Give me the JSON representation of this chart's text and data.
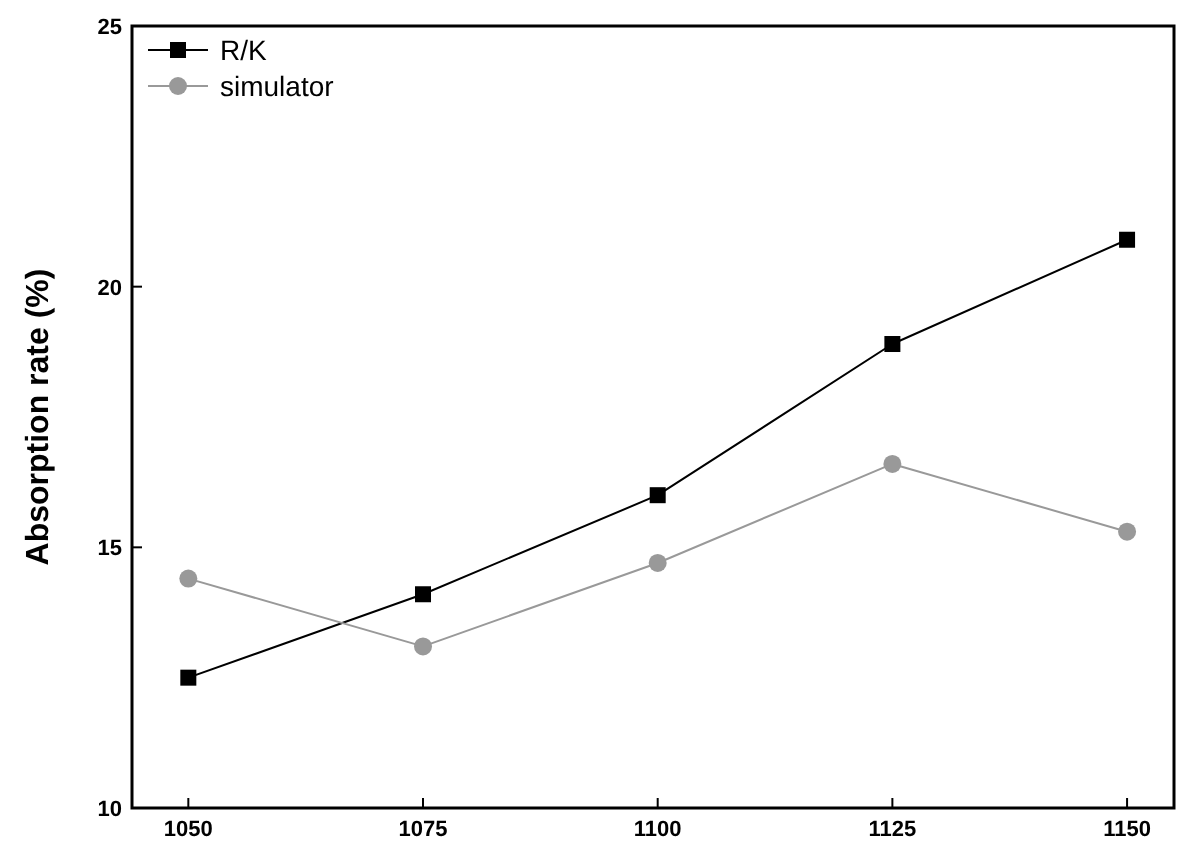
{
  "chart_data": {
    "type": "line",
    "ylabel": "Absorption rate (%)",
    "x": [
      1050,
      1075,
      1100,
      1125,
      1150
    ],
    "series": [
      {
        "name": "R/K",
        "color": "#000000",
        "marker": "square",
        "values": [
          12.5,
          14.1,
          16.0,
          18.9,
          20.9
        ]
      },
      {
        "name": "simulator",
        "color": "#999999",
        "marker": "circle",
        "values": [
          14.4,
          13.1,
          14.7,
          16.6,
          15.3
        ]
      }
    ],
    "xlim": [
      1044,
      1155
    ],
    "xticks": [
      1050,
      1075,
      1100,
      1125,
      1150
    ],
    "ylim": [
      10,
      25
    ],
    "yticks": [
      10,
      15,
      20,
      25
    ],
    "legend": "top left",
    "grid": false
  }
}
